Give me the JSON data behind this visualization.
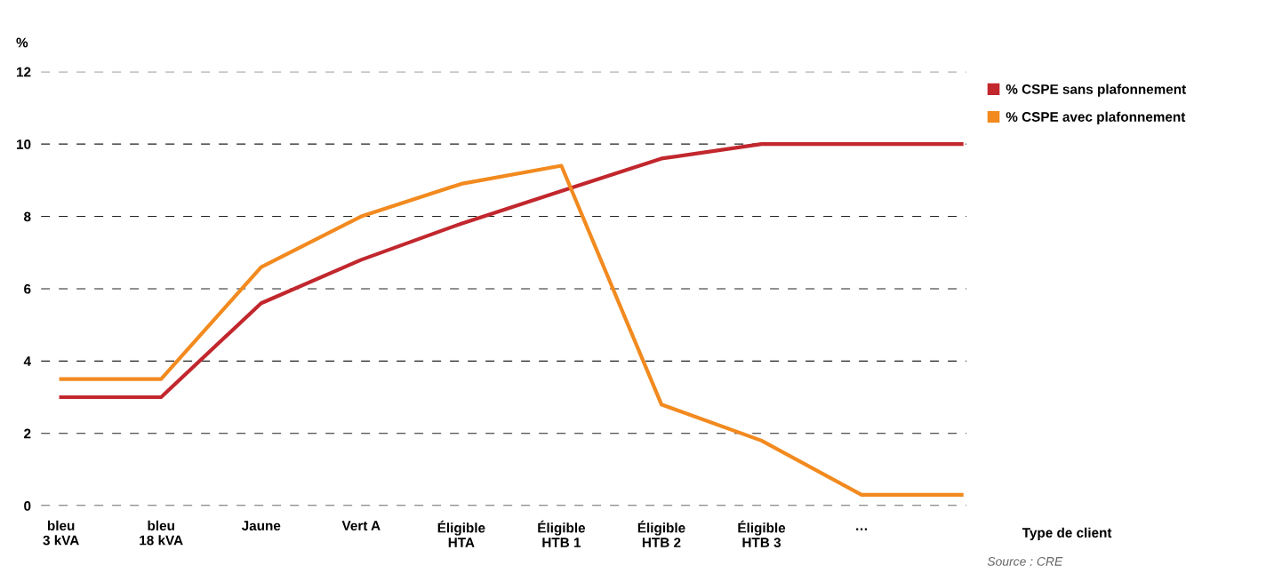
{
  "chart_data": {
    "type": "line",
    "ylabel": "%",
    "xlabel": "Type de client",
    "categories": [
      "bleu\n3 kVA",
      "bleu\n18 kVA",
      "Jaune",
      "Vert A",
      "Éligible\nHTA",
      "Éligible\nHTB 1",
      "Éligible\nHTB 2",
      "Éligible\nHTB 3",
      "…",
      null
    ],
    "series": [
      {
        "name": "% CSPE sans plafonnement",
        "color": "#c1272d",
        "values": [
          3.0,
          3.0,
          5.6,
          6.8,
          7.8,
          8.7,
          9.6,
          10.0,
          10.0,
          10.0
        ]
      },
      {
        "name": "% CSPE avec plafonnement",
        "color": "#f28a1f",
        "values": [
          3.5,
          3.5,
          6.6,
          8.0,
          8.9,
          9.4,
          2.8,
          1.8,
          0.3,
          0.3
        ]
      }
    ],
    "ylim": [
      0,
      12
    ],
    "yticks": [
      0,
      2,
      4,
      6,
      8,
      10,
      12
    ],
    "grid": "y",
    "legend": "top right",
    "line_style": "solid",
    "marker": "none",
    "annotations": [
      "Source : CRE"
    ]
  }
}
